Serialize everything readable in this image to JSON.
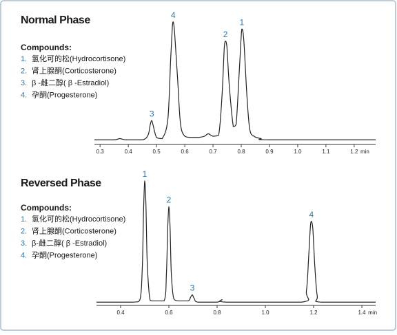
{
  "chart_data": [
    {
      "type": "line",
      "title": "Normal Phase",
      "compounds_title": "Compounds:",
      "compounds": [
        {
          "number": "1.",
          "name": "氢化可的松(Hydrocortisone)"
        },
        {
          "number": "2.",
          "name": "肾上腺酮(Corticosterone)"
        },
        {
          "number": "3.",
          "name": "β -雌二醇( β -Estradiol)"
        },
        {
          "number": "4.",
          "name": "孕酮(Progesterone)"
        }
      ],
      "x_label": "min",
      "x": [
        0.28,
        0.35,
        0.37,
        0.39,
        0.45,
        0.47,
        0.478,
        0.483,
        0.488,
        0.5,
        0.52,
        0.54,
        0.55,
        0.556,
        0.559,
        0.564,
        0.575,
        0.585,
        0.6,
        0.62,
        0.65,
        0.67,
        0.683,
        0.7,
        0.72,
        0.732,
        0.74,
        0.744,
        0.749,
        0.758,
        0.772,
        0.782,
        0.794,
        0.802,
        0.809,
        0.82,
        0.83,
        0.845,
        0.87,
        0.9,
        1.276
      ],
      "series": [
        {
          "color": "#222222",
          "values": [
            1,
            1,
            2,
            1,
            1,
            5,
            14,
            17,
            13,
            3,
            2,
            18,
            68,
            95,
            99,
            90,
            50,
            14,
            4,
            3,
            3,
            4,
            6,
            4,
            5,
            38,
            78,
            83,
            79,
            45,
            12,
            14,
            62,
            93,
            84,
            38,
            10,
            4,
            2,
            1,
            1
          ]
        }
      ],
      "annotations": [
        {
          "text": "1",
          "x": 0.802,
          "y": 93
        },
        {
          "text": "2",
          "x": 0.744,
          "y": 83
        },
        {
          "text": "3",
          "x": 0.483,
          "y": 17
        },
        {
          "text": "4",
          "x": 0.559,
          "y": 99
        }
      ],
      "xlim": [
        0.28,
        1.276
      ],
      "ylim": [
        0,
        100
      ],
      "xticks": [
        0.3,
        0.4,
        0.5,
        0.6,
        0.7,
        0.8,
        0.9,
        {
          "value": 1,
          "label": "1.0"
        },
        1.1,
        1.2
      ]
    },
    {
      "type": "line",
      "title": "Reversed Phase",
      "compounds_title": "Compounds:",
      "compounds": [
        {
          "number": "1.",
          "name": "氢化可的松(Hydrocortisone)"
        },
        {
          "number": "2.",
          "name": "肾上腺酮(Corticosterone)"
        },
        {
          "number": "3.",
          "name": "β-雌二醇( β -Estradiol)"
        },
        {
          "number": "4.",
          "name": "孕酮(Progesterone)"
        }
      ],
      "x_label": "min",
      "x": [
        0.3,
        0.45,
        0.48,
        0.49,
        0.495,
        0.5,
        0.505,
        0.51,
        0.52,
        0.53,
        0.58,
        0.59,
        0.595,
        0.6,
        0.605,
        0.61,
        0.62,
        0.64,
        0.68,
        0.69,
        0.697,
        0.705,
        0.72,
        0.8,
        0.82,
        0.84,
        1.15,
        1.17,
        1.18,
        1.187,
        1.191,
        1.197,
        1.205,
        1.215,
        1.23,
        1.457
      ],
      "series": [
        {
          "color": "#222222",
          "values": [
            1,
            1,
            3,
            30,
            75,
            100,
            80,
            35,
            5,
            2,
            2,
            25,
            60,
            79,
            62,
            25,
            4,
            2,
            2,
            5,
            7,
            4,
            1,
            1,
            3,
            1,
            1,
            10,
            40,
            64,
            67,
            60,
            30,
            6,
            1,
            1
          ]
        }
      ],
      "annotations": [
        {
          "text": "1",
          "x": 0.5,
          "y": 100
        },
        {
          "text": "2",
          "x": 0.6,
          "y": 79
        },
        {
          "text": "3",
          "x": 0.697,
          "y": 7
        },
        {
          "text": "4",
          "x": 1.191,
          "y": 67
        }
      ],
      "xlim": [
        0.3,
        1.457
      ],
      "ylim": [
        0,
        100
      ],
      "xticks": [
        0.4,
        0.6,
        0.8,
        {
          "value": 1,
          "label": "1.0"
        },
        1.2,
        1.4
      ]
    }
  ]
}
